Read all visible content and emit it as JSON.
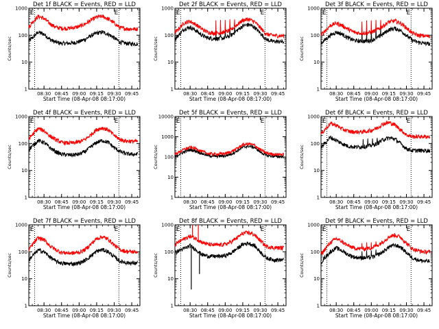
{
  "figure": {
    "xlabel": "Start Time (08-Apr-08 08:17:00)",
    "ylabel": "Counts/sec",
    "xticks": [
      "08:30",
      "08:45",
      "09:00",
      "09:15",
      "09:30",
      "09:45"
    ],
    "yticks": [
      "1",
      "10",
      "100",
      "1000"
    ],
    "start_marker": "E",
    "end_marker": "E",
    "marker_times": [
      "08:22",
      "09:34"
    ],
    "colors": {
      "events": "#000000",
      "lld": "#ff0000"
    }
  },
  "chart_data": [
    {
      "type": "line",
      "title": "Det 1f BLACK = Events, RED = LLD",
      "x": [
        "08:17",
        "08:20",
        "08:25",
        "08:30",
        "08:35",
        "08:40",
        "08:45",
        "08:50",
        "08:55",
        "09:00",
        "09:05",
        "09:10",
        "09:15",
        "09:20",
        "09:25",
        "09:30",
        "09:35",
        "09:40",
        "09:45",
        "09:50"
      ],
      "series": [
        {
          "name": "Events",
          "values": [
            60,
            80,
            130,
            110,
            70,
            55,
            50,
            50,
            52,
            58,
            70,
            95,
            120,
            130,
            110,
            80,
            55,
            50,
            48,
            48
          ]
        },
        {
          "name": "LLD",
          "values": [
            200,
            300,
            500,
            420,
            270,
            200,
            180,
            180,
            190,
            210,
            260,
            360,
            470,
            500,
            400,
            280,
            190,
            175,
            170,
            170
          ]
        }
      ],
      "spikes": [],
      "ylim": [
        1,
        1000
      ]
    },
    {
      "type": "line",
      "title": "Det 2f BLACK = Events, RED = LLD",
      "x": [
        "08:17",
        "08:20",
        "08:25",
        "08:30",
        "08:35",
        "08:40",
        "08:45",
        "08:50",
        "08:55",
        "09:00",
        "09:05",
        "09:10",
        "09:15",
        "09:20",
        "09:25",
        "09:30",
        "09:35",
        "09:40",
        "09:45",
        "09:50"
      ],
      "series": [
        {
          "name": "Events",
          "values": [
            70,
            100,
            170,
            200,
            150,
            100,
            80,
            75,
            75,
            80,
            100,
            150,
            220,
            250,
            200,
            120,
            70,
            60,
            58,
            58
          ]
        },
        {
          "name": "LLD",
          "values": [
            120,
            170,
            290,
            330,
            250,
            170,
            130,
            120,
            120,
            130,
            160,
            240,
            360,
            390,
            320,
            190,
            110,
            100,
            95,
            95
          ]
        }
      ],
      "spikes": [
        {
          "x": "08:52",
          "value": 220
        },
        {
          "x": "08:56",
          "value": 230
        },
        {
          "x": "09:00",
          "value": 230
        },
        {
          "x": "09:04",
          "value": 240
        },
        {
          "x": "09:08",
          "value": 240
        }
      ],
      "ylim": [
        1,
        1000
      ]
    },
    {
      "type": "line",
      "title": "Det 3f BLACK = Events, RED = LLD",
      "x": [
        "08:17",
        "08:20",
        "08:25",
        "08:30",
        "08:35",
        "08:40",
        "08:45",
        "08:50",
        "08:55",
        "09:00",
        "09:05",
        "09:10",
        "09:15",
        "09:20",
        "09:25",
        "09:30",
        "09:35",
        "09:40",
        "09:45",
        "09:50"
      ],
      "series": [
        {
          "name": "Events",
          "values": [
            50,
            65,
            100,
            130,
            110,
            80,
            65,
            60,
            60,
            65,
            80,
            110,
            160,
            180,
            150,
            100,
            65,
            55,
            50,
            48
          ]
        },
        {
          "name": "LLD",
          "values": [
            100,
            140,
            230,
            280,
            230,
            170,
            130,
            120,
            120,
            130,
            160,
            220,
            310,
            340,
            280,
            190,
            120,
            100,
            95,
            90
          ]
        }
      ],
      "spikes": [
        {
          "x": "08:52",
          "value": 200
        },
        {
          "x": "08:56",
          "value": 220
        },
        {
          "x": "09:00",
          "value": 220
        },
        {
          "x": "09:04",
          "value": 230
        },
        {
          "x": "09:08",
          "value": 230
        }
      ],
      "ylim": [
        1,
        1000
      ]
    },
    {
      "type": "line",
      "title": "Det 4f BLACK = Events, RED = LLD",
      "x": [
        "08:17",
        "08:20",
        "08:25",
        "08:30",
        "08:35",
        "08:40",
        "08:45",
        "08:50",
        "08:55",
        "09:00",
        "09:05",
        "09:10",
        "09:15",
        "09:20",
        "09:25",
        "09:30",
        "09:35",
        "09:40",
        "09:45",
        "09:50"
      ],
      "series": [
        {
          "name": "Events",
          "values": [
            60,
            80,
            130,
            110,
            70,
            50,
            40,
            38,
            38,
            40,
            50,
            75,
            110,
            130,
            110,
            70,
            50,
            42,
            40,
            40
          ]
        },
        {
          "name": "LLD",
          "values": [
            150,
            210,
            360,
            300,
            190,
            140,
            110,
            105,
            105,
            115,
            140,
            210,
            330,
            380,
            320,
            200,
            140,
            125,
            120,
            120
          ]
        }
      ],
      "spikes": [],
      "ylim": [
        1,
        1000
      ]
    },
    {
      "type": "line",
      "title": "Det 5f BLACK = Events, RED = LLD",
      "x": [
        "08:17",
        "08:20",
        "08:25",
        "08:30",
        "08:35",
        "08:40",
        "08:45",
        "08:50",
        "08:55",
        "09:00",
        "09:05",
        "09:10",
        "09:15",
        "09:20",
        "09:25",
        "09:30",
        "09:35",
        "09:40",
        "09:45",
        "09:50"
      ],
      "series": [
        {
          "name": "Events",
          "values": [
            100,
            130,
            180,
            230,
            200,
            150,
            120,
            110,
            110,
            115,
            140,
            200,
            300,
            350,
            300,
            180,
            120,
            110,
            105,
            105
          ]
        },
        {
          "name": "LLD",
          "values": [
            130,
            170,
            240,
            300,
            260,
            190,
            150,
            140,
            140,
            150,
            180,
            260,
            400,
            450,
            380,
            230,
            160,
            140,
            135,
            135
          ]
        }
      ],
      "spikes": [],
      "ylim": [
        1,
        10000
      ]
    },
    {
      "type": "line",
      "title": "Det 6f BLACK = Events, RED = LLD",
      "x": [
        "08:17",
        "08:20",
        "08:25",
        "08:30",
        "08:35",
        "08:40",
        "08:45",
        "08:50",
        "08:55",
        "09:00",
        "09:05",
        "09:10",
        "09:15",
        "09:20",
        "09:25",
        "09:30",
        "09:35",
        "09:40",
        "09:45",
        "09:50"
      ],
      "series": [
        {
          "name": "Events",
          "values": [
            70,
            100,
            170,
            130,
            100,
            80,
            75,
            75,
            78,
            85,
            100,
            140,
            160,
            150,
            100,
            65,
            55,
            55,
            55,
            55
          ]
        },
        {
          "name": "LLD",
          "values": [
            220,
            320,
            550,
            480,
            350,
            290,
            270,
            270,
            280,
            310,
            380,
            530,
            600,
            500,
            330,
            210,
            180,
            180,
            180,
            180
          ]
        }
      ],
      "spikes": [
        {
          "x": "08:53",
          "value": 180
        },
        {
          "x": "08:57",
          "value": 190
        },
        {
          "x": "09:01",
          "value": 190
        },
        {
          "x": "09:05",
          "value": 200
        }
      ],
      "ylim": [
        1,
        1000
      ]
    },
    {
      "type": "line",
      "title": "Det 7f BLACK = Events, RED = LLD",
      "x": [
        "08:17",
        "08:20",
        "08:25",
        "08:30",
        "08:35",
        "08:40",
        "08:45",
        "08:50",
        "08:55",
        "09:00",
        "09:05",
        "09:10",
        "09:15",
        "09:20",
        "09:25",
        "09:30",
        "09:35",
        "09:40",
        "09:45",
        "09:50"
      ],
      "series": [
        {
          "name": "Events",
          "values": [
            50,
            70,
            115,
            100,
            65,
            45,
            38,
            36,
            36,
            38,
            48,
            70,
            105,
            120,
            100,
            65,
            45,
            40,
            38,
            38
          ]
        },
        {
          "name": "LLD",
          "values": [
            120,
            180,
            330,
            280,
            170,
            120,
            95,
            90,
            90,
            95,
            120,
            190,
            310,
            360,
            290,
            180,
            120,
            105,
            100,
            100
          ]
        }
      ],
      "spikes": [],
      "ylim": [
        1,
        1000
      ]
    },
    {
      "type": "line",
      "title": "Det 8f BLACK = Events, RED = LLD",
      "x": [
        "08:17",
        "08:20",
        "08:25",
        "08:30",
        "08:35",
        "08:40",
        "08:45",
        "08:50",
        "08:55",
        "09:00",
        "09:05",
        "09:10",
        "09:15",
        "09:20",
        "09:25",
        "09:30",
        "09:35",
        "09:40",
        "09:45",
        "09:50"
      ],
      "series": [
        {
          "name": "Events",
          "values": [
            90,
            110,
            130,
            170,
            120,
            80,
            70,
            68,
            68,
            72,
            90,
            130,
            190,
            210,
            170,
            100,
            60,
            52,
            50,
            50
          ]
        },
        {
          "name": "LLD",
          "values": [
            180,
            230,
            300,
            380,
            310,
            230,
            190,
            180,
            180,
            190,
            230,
            330,
            480,
            520,
            430,
            260,
            160,
            145,
            140,
            140
          ]
        }
      ],
      "spikes": [],
      "glitches": [
        {
          "x": "08:31",
          "series": "Events",
          "value": 4
        },
        {
          "x": "08:38",
          "series": "Events",
          "value": 15
        },
        {
          "x": "08:32",
          "series": "LLD",
          "value": 1000
        },
        {
          "x": "08:37",
          "series": "LLD",
          "value": 1000
        }
      ],
      "ylim": [
        1,
        1000
      ]
    },
    {
      "type": "line",
      "title": "Det 9f BLACK = Events, RED = LLD",
      "x": [
        "08:17",
        "08:20",
        "08:25",
        "08:30",
        "08:35",
        "08:40",
        "08:45",
        "08:50",
        "08:55",
        "09:00",
        "09:05",
        "09:10",
        "09:15",
        "09:20",
        "09:25",
        "09:30",
        "09:35",
        "09:40",
        "09:45",
        "09:50"
      ],
      "series": [
        {
          "name": "Events",
          "values": [
            40,
            60,
            100,
            140,
            110,
            80,
            65,
            60,
            60,
            62,
            75,
            100,
            150,
            180,
            150,
            95,
            60,
            50,
            45,
            45
          ]
        },
        {
          "name": "LLD",
          "values": [
            80,
            120,
            220,
            310,
            240,
            170,
            140,
            130,
            130,
            140,
            170,
            240,
            360,
            420,
            350,
            210,
            130,
            110,
            100,
            100
          ]
        }
      ],
      "spikes": [
        {
          "x": "08:52",
          "value": 130
        },
        {
          "x": "08:56",
          "value": 140
        },
        {
          "x": "09:00",
          "value": 140
        },
        {
          "x": "09:04",
          "value": 150
        }
      ],
      "ylim": [
        1,
        1000
      ]
    }
  ]
}
